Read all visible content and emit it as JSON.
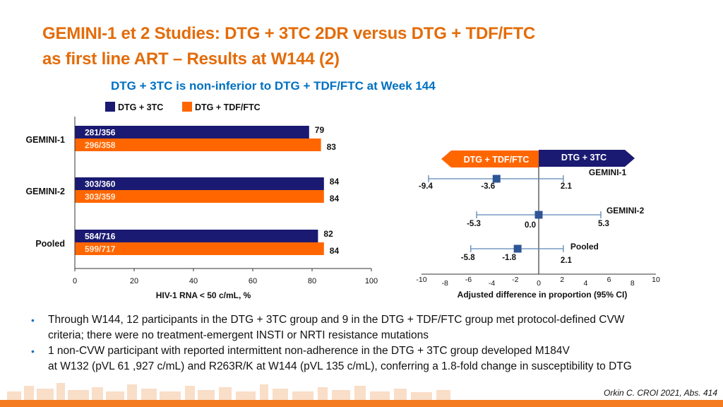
{
  "slide": {
    "title_line1": "GEMINI-1 et 2 Studies: DTG + 3TC 2DR versus DTG + TDF/FTC",
    "title_line2": "as first line ART – Results at W144 (2)",
    "subtitle": "DTG + 3TC is non-inferior to DTG + TDF/FTC at Week 144",
    "reference": "Orkin C. CROI 2021, Abs. 414"
  },
  "colors": {
    "title": "#e36c0a",
    "subtitle": "#0070c0",
    "dtg_3tc": "#1a1a72",
    "dtg_tdf": "#ff6600",
    "forest_marker": "#2e5596",
    "forest_line": "#5b88b8"
  },
  "bullets": [
    {
      "line1": "Through W144, 12 participants in the DTG + 3TC group and 9 in the DTG + TDF/FTC group met protocol-defined CVW",
      "line2": "criteria; there were no treatment-emergent INSTI or NRTI resistance mutations"
    },
    {
      "line1": "1 non-CVW participant with reported intermittent non-adherence in the DTG + 3TC group developed M184V",
      "line2": "at W132 (pVL 61 ,927 c/mL) and R263R/K at W144 (pVL 135 c/mL), conferring a 1.8-fold change in susceptibility to DTG"
    }
  ],
  "chart_data": [
    {
      "type": "bar",
      "orientation": "horizontal",
      "categories": [
        "GEMINI-1",
        "GEMINI-2",
        "Pooled"
      ],
      "series": [
        {
          "name": "DTG + 3TC",
          "values": [
            79,
            84,
            82
          ],
          "fractions": [
            "281/356",
            "303/360",
            "584/716"
          ]
        },
        {
          "name": "DTG + TDF/FTC",
          "values": [
            83,
            84,
            84
          ],
          "fractions": [
            "296/358",
            "303/359",
            "599/717"
          ]
        }
      ],
      "xlabel": "HIV-1 RNA < 50 c/mL, %",
      "xlim": [
        0,
        100
      ],
      "xticks": [
        "0",
        "20",
        "40",
        "60",
        "80",
        "100"
      ],
      "legend": "top"
    },
    {
      "type": "scatter",
      "subtype": "forest",
      "xlabel": "Adjusted difference in proportion (95% CI)",
      "xlim": [
        -10,
        10
      ],
      "xticks": [
        "-10",
        "-8",
        "-6",
        "-4",
        "-2",
        "0",
        "2",
        "4",
        "6",
        "8",
        "10"
      ],
      "arrow_left": "DTG + TDF/FTC",
      "arrow_right": "DTG + 3TC",
      "rows": [
        {
          "name": "GEMINI-1",
          "estimate": -3.6,
          "lower": -9.4,
          "upper": 2.1,
          "est_label": "-3.6",
          "lower_label": "-9.4",
          "upper_label": "2.1"
        },
        {
          "name": "GEMINI-2",
          "estimate": 0.0,
          "lower": -5.3,
          "upper": 5.3,
          "est_label": "0.0",
          "lower_label": "-5.3",
          "upper_label": "5.3"
        },
        {
          "name": "Pooled",
          "estimate": -1.8,
          "lower": -5.8,
          "upper": 2.1,
          "est_label": "-1.8",
          "lower_label": "-5.8",
          "upper_label": "2.1"
        }
      ]
    }
  ]
}
